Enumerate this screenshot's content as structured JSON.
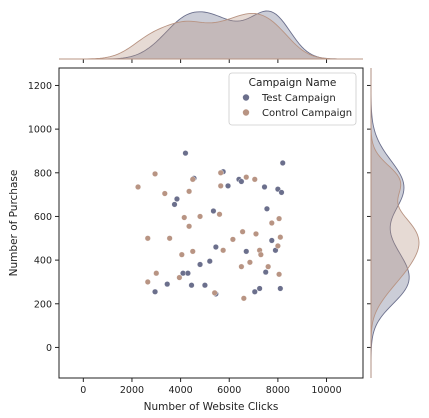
{
  "chart_data": {
    "type": "scatter",
    "title": "",
    "xlabel": "Number of Website Clicks",
    "ylabel": "Number of Purchase",
    "xlim": [
      -1000,
      11500
    ],
    "ylim": [
      -140,
      1280
    ],
    "xticks": [
      0,
      2000,
      4000,
      6000,
      8000,
      10000
    ],
    "yticks": [
      0,
      200,
      400,
      600,
      800,
      1000,
      1200
    ],
    "grid": false,
    "legend": {
      "title": "Campaign Name",
      "placement": "top-right"
    },
    "marginals": "kde",
    "series": [
      {
        "name": "Test Campaign",
        "color": "#6b6f8c",
        "points": [
          [
            4200,
            890
          ],
          [
            8200,
            845
          ],
          [
            5750,
            805
          ],
          [
            4550,
            775
          ],
          [
            6400,
            770
          ],
          [
            6500,
            760
          ],
          [
            5950,
            740
          ],
          [
            7450,
            735
          ],
          [
            8000,
            725
          ],
          [
            8150,
            710
          ],
          [
            3850,
            680
          ],
          [
            3750,
            655
          ],
          [
            7550,
            635
          ],
          [
            5350,
            625
          ],
          [
            7750,
            490
          ],
          [
            5450,
            460
          ],
          [
            5200,
            395
          ],
          [
            4800,
            380
          ],
          [
            7500,
            345
          ],
          [
            4100,
            340
          ],
          [
            4300,
            340
          ],
          [
            3450,
            290
          ],
          [
            4450,
            285
          ],
          [
            5000,
            285
          ],
          [
            7250,
            270
          ],
          [
            7050,
            255
          ],
          [
            8100,
            270
          ],
          [
            2950,
            255
          ],
          [
            5450,
            245
          ],
          [
            7900,
            445
          ],
          [
            6700,
            440
          ]
        ]
      },
      {
        "name": "Control Campaign",
        "color": "#b89483",
        "points": [
          [
            5650,
            800
          ],
          [
            2950,
            795
          ],
          [
            6700,
            780
          ],
          [
            2250,
            735
          ],
          [
            4500,
            770
          ],
          [
            7050,
            770
          ],
          [
            4350,
            715
          ],
          [
            3350,
            705
          ],
          [
            4800,
            600
          ],
          [
            5650,
            740
          ],
          [
            4150,
            595
          ],
          [
            5600,
            610
          ],
          [
            8050,
            590
          ],
          [
            7750,
            570
          ],
          [
            4350,
            555
          ],
          [
            6550,
            530
          ],
          [
            7100,
            520
          ],
          [
            6150,
            495
          ],
          [
            2650,
            500
          ],
          [
            3550,
            500
          ],
          [
            8100,
            505
          ],
          [
            8000,
            465
          ],
          [
            7250,
            445
          ],
          [
            4500,
            440
          ],
          [
            5750,
            445
          ],
          [
            7300,
            425
          ],
          [
            6850,
            390
          ],
          [
            6500,
            370
          ],
          [
            7600,
            370
          ],
          [
            4050,
            425
          ],
          [
            3000,
            340
          ],
          [
            3950,
            320
          ],
          [
            2650,
            300
          ],
          [
            8050,
            335
          ],
          [
            5400,
            250
          ],
          [
            6600,
            225
          ]
        ]
      }
    ]
  }
}
